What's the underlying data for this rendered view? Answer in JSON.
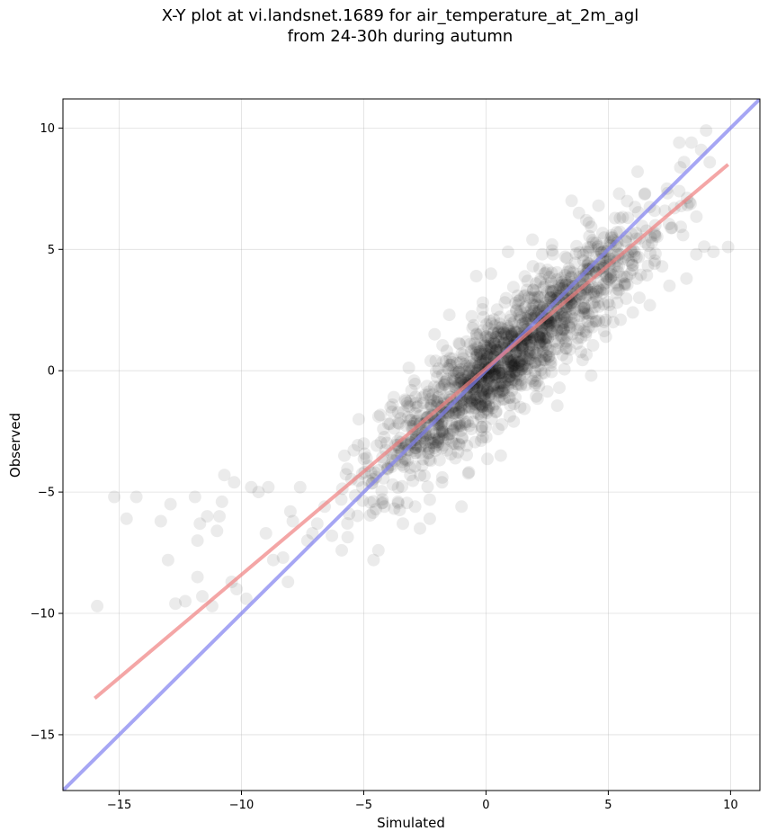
{
  "title_line1": "X-Y plot at vi.landsnet.1689 for air_temperature_at_2m_agl",
  "title_line2": "from 24-30h during autumn",
  "chart_data": {
    "type": "scatter",
    "xlabel": "Simulated",
    "ylabel": "Observed",
    "xlim": [
      -17.3,
      11.2
    ],
    "ylim": [
      -17.3,
      11.2
    ],
    "xticks": [
      -15,
      -10,
      -5,
      0,
      5,
      10
    ],
    "yticks": [
      -15,
      -10,
      -5,
      0,
      5,
      10
    ],
    "xtick_labels": [
      "−15",
      "−10",
      "−5",
      "0",
      "5",
      "10"
    ],
    "ytick_labels": [
      "−15",
      "−10",
      "−5",
      "0",
      "5",
      "10"
    ],
    "grid": true,
    "colors": {
      "points": "#000000",
      "fit_line": "#f08080",
      "identity_line": "#8080f0"
    },
    "fit_line": {
      "x": [
        -16.0,
        9.9
      ],
      "y": [
        -13.5,
        8.5
      ]
    },
    "identity_line": {
      "x": [
        -17.3,
        11.2
      ],
      "y": [
        -17.3,
        11.2
      ]
    },
    "points": [
      [
        -15.9,
        -9.7
      ],
      [
        -15.2,
        -5.2
      ],
      [
        -14.7,
        -6.1
      ],
      [
        -14.3,
        -5.2
      ],
      [
        -13.3,
        -6.2
      ],
      [
        -13.0,
        -7.8
      ],
      [
        -12.9,
        -5.5
      ],
      [
        -12.7,
        -9.6
      ],
      [
        -12.3,
        -9.5
      ],
      [
        -11.9,
        -5.2
      ],
      [
        -11.8,
        -7.0
      ],
      [
        -11.7,
        -6.3
      ],
      [
        -11.8,
        -8.5
      ],
      [
        -11.6,
        -9.3
      ],
      [
        -11.4,
        -6.0
      ],
      [
        -11.2,
        -9.7
      ],
      [
        -11.0,
        -6.6
      ],
      [
        -10.9,
        -6.0
      ],
      [
        -10.8,
        -5.4
      ],
      [
        -10.7,
        -4.3
      ],
      [
        -10.3,
        -4.6
      ],
      [
        -10.4,
        -8.7
      ],
      [
        -10.2,
        -9.0
      ],
      [
        -9.8,
        -9.4
      ],
      [
        -9.6,
        -4.8
      ],
      [
        -9.3,
        -5.0
      ],
      [
        -9.0,
        -6.7
      ],
      [
        -8.9,
        -4.8
      ],
      [
        -8.7,
        -7.8
      ],
      [
        -8.3,
        -7.7
      ],
      [
        -8.1,
        -8.7
      ],
      [
        -8.0,
        -5.8
      ],
      [
        -7.9,
        -6.2
      ],
      [
        -7.6,
        -4.8
      ],
      [
        -7.3,
        -7.0
      ],
      [
        -7.1,
        -6.7
      ],
      [
        -6.9,
        -6.3
      ],
      [
        -6.6,
        -5.6
      ],
      [
        -6.3,
        -6.8
      ],
      [
        -5.9,
        -7.4
      ],
      [
        -5.6,
        -5.9
      ],
      [
        -5.2,
        -2.0
      ],
      [
        -5.0,
        -3.0
      ],
      [
        -4.7,
        -4.2
      ],
      [
        -4.6,
        -7.8
      ],
      [
        -4.4,
        -7.4
      ],
      [
        -4.2,
        -2.4
      ],
      [
        -3.9,
        -1.5
      ],
      [
        -3.6,
        -5.4
      ],
      [
        -3.4,
        -6.3
      ],
      [
        -3.1,
        -4.0
      ],
      [
        -2.9,
        -5.6
      ],
      [
        -2.7,
        -6.5
      ],
      [
        -2.5,
        -1.0
      ],
      [
        -2.3,
        -6.1
      ],
      [
        -2.1,
        1.5
      ],
      [
        -1.8,
        -4.6
      ],
      [
        -1.5,
        2.3
      ],
      [
        -1.2,
        -1.4
      ],
      [
        -1.0,
        -5.6
      ],
      [
        -0.8,
        1.2
      ],
      [
        -0.6,
        -2.4
      ],
      [
        -0.4,
        3.9
      ],
      [
        -0.1,
        2.2
      ],
      [
        0.2,
        4.0
      ],
      [
        0.5,
        -2.4
      ],
      [
        0.6,
        -3.5
      ],
      [
        0.9,
        4.9
      ],
      [
        1.2,
        -1.1
      ],
      [
        1.4,
        -1.5
      ],
      [
        1.7,
        3.7
      ],
      [
        1.9,
        5.4
      ],
      [
        2.3,
        4.8
      ],
      [
        2.7,
        5.2
      ],
      [
        3.0,
        -0.7
      ],
      [
        3.3,
        0.5
      ],
      [
        3.5,
        7.0
      ],
      [
        3.8,
        6.5
      ],
      [
        4.1,
        6.2
      ],
      [
        4.3,
        -0.2
      ],
      [
        4.6,
        6.8
      ],
      [
        4.9,
        1.4
      ],
      [
        5.2,
        2.0
      ],
      [
        5.5,
        2.1
      ],
      [
        5.8,
        6.3
      ],
      [
        6.0,
        2.4
      ],
      [
        6.2,
        8.2
      ],
      [
        6.5,
        7.3
      ],
      [
        6.7,
        2.7
      ],
      [
        6.9,
        5.6
      ],
      [
        7.2,
        4.3
      ],
      [
        7.4,
        7.5
      ],
      [
        7.5,
        3.5
      ],
      [
        7.7,
        6.7
      ],
      [
        7.9,
        9.4
      ],
      [
        8.2,
        3.8
      ],
      [
        8.4,
        9.4
      ],
      [
        8.6,
        4.8
      ],
      [
        8.8,
        9.1
      ],
      [
        9.0,
        9.9
      ],
      [
        9.3,
        4.9
      ],
      [
        9.9,
        5.1
      ],
      [
        8.1,
        8.6
      ],
      [
        7.9,
        7.4
      ]
    ]
  }
}
